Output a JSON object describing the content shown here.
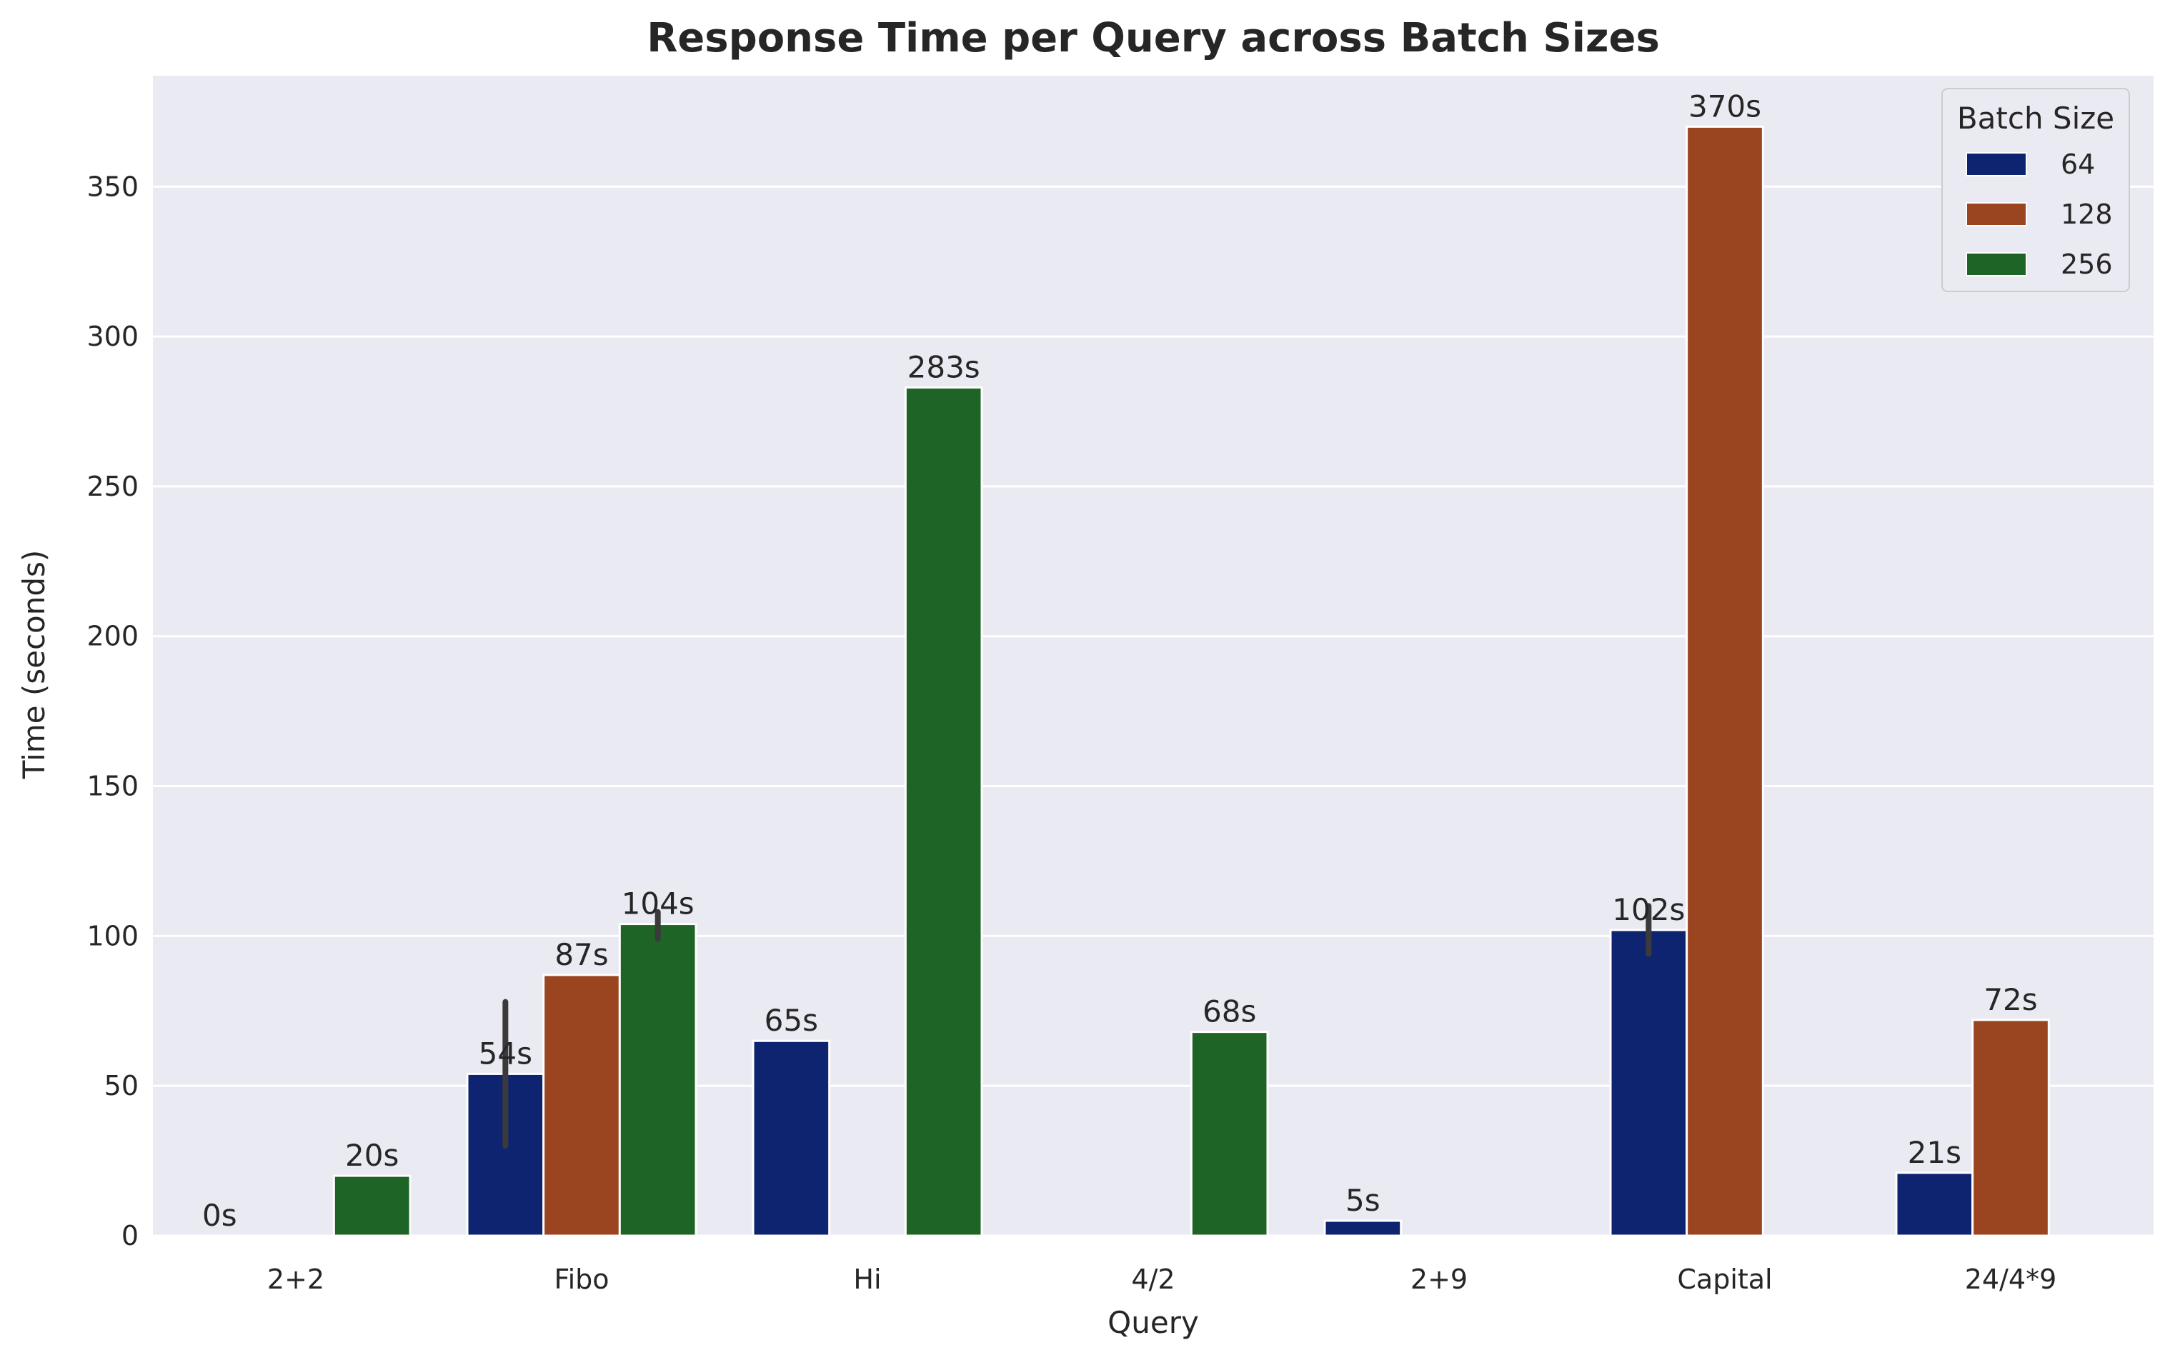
{
  "chart_data": {
    "type": "bar",
    "title": "Response Time per Query across Batch Sizes",
    "xlabel": "Query",
    "ylabel": "Time (seconds)",
    "ylim": [
      0,
      387
    ],
    "yticks": [
      0,
      50,
      100,
      150,
      200,
      250,
      300,
      350
    ],
    "grid": true,
    "legend_title": "Batch Size",
    "legend_position": "top-right",
    "categories": [
      "2+2",
      "Fibo",
      "Hi",
      "4/2",
      "2+9",
      "Capital",
      "24/4*9"
    ],
    "series": [
      {
        "name": "64",
        "color": "#0f2470",
        "values": [
          0,
          54,
          65,
          null,
          5,
          102,
          21
        ],
        "labels": [
          "0s",
          "54s",
          "65s",
          "",
          "5s",
          "102s",
          "21s"
        ],
        "error_bars": [
          null,
          [
            30,
            78
          ],
          null,
          null,
          null,
          [
            94,
            110
          ],
          null
        ]
      },
      {
        "name": "128",
        "color": "#9b4420",
        "values": [
          null,
          87,
          null,
          null,
          null,
          370,
          72
        ],
        "labels": [
          "",
          "87s",
          "",
          "",
          "",
          "370s",
          "72s"
        ],
        "error_bars": [
          null,
          null,
          null,
          null,
          null,
          null,
          null
        ]
      },
      {
        "name": "256",
        "color": "#1e6426",
        "values": [
          20,
          104,
          283,
          68,
          null,
          null,
          null
        ],
        "labels": [
          "20s",
          "104s",
          "283s",
          "68s",
          "",
          "",
          ""
        ],
        "error_bars": [
          null,
          [
            99,
            108
          ],
          null,
          null,
          null,
          null,
          null
        ]
      }
    ]
  }
}
